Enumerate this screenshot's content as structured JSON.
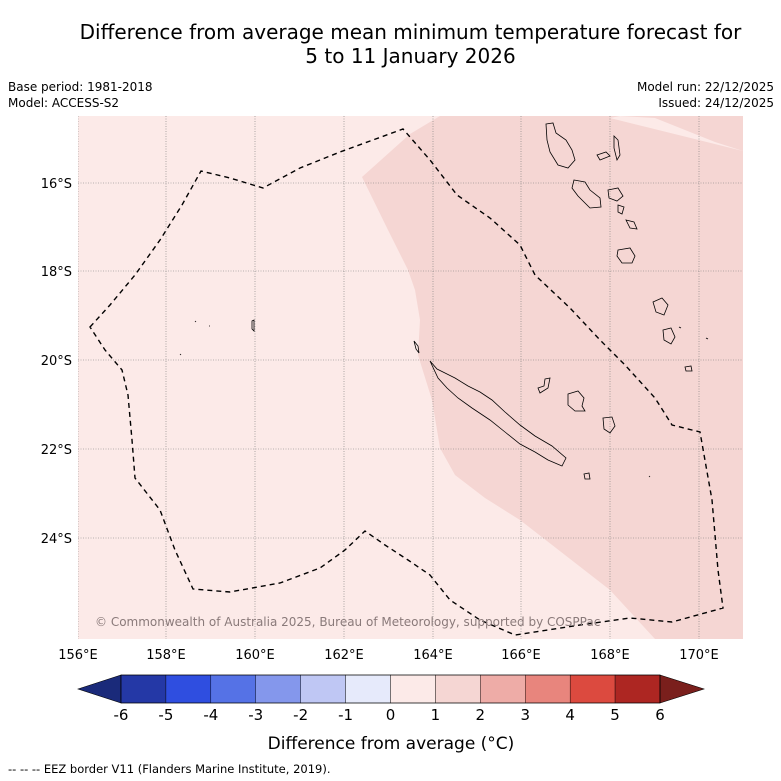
{
  "title_line1": "Difference from average mean minimum temperature forecast for",
  "title_line2": "5 to 11 January 2026",
  "meta_left": [
    "Base period: 1981-2018",
    "Model: ACCESS-S2"
  ],
  "meta_right": [
    "Model run: 22/12/2025",
    "Issued: 24/12/2025"
  ],
  "map": {
    "lon_range": [
      156.0,
      171.0
    ],
    "lat_range": [
      -14.5,
      -26.3
    ],
    "lon_ticks": [
      "156°E",
      "158°E",
      "160°E",
      "162°E",
      "164°E",
      "166°E",
      "168°E",
      "170°E"
    ],
    "lat_ticks": [
      "16°S",
      "18°S",
      "20°S",
      "22°S",
      "24°S"
    ],
    "copyright": "© Commonwealth of Australia 2025, Bureau of Meteorology, supported by COSPPac",
    "background_color": "#fceae8",
    "warm_region_color": "#f5d6d3"
  },
  "colorbar": {
    "label": "Difference from average (°C)",
    "ticks": [
      "-6",
      "-5",
      "-4",
      "-3",
      "-2",
      "-1",
      "0",
      "1",
      "2",
      "3",
      "4",
      "5",
      "6"
    ],
    "colors": [
      "#2438a6",
      "#2f4ee0",
      "#5572e6",
      "#8497ec",
      "#bfc7f4",
      "#e6eafb",
      "#fceae8",
      "#f5d6d3",
      "#eeaca7",
      "#e8857d",
      "#dc4a3f",
      "#ad2622"
    ],
    "low_extend_color": "#1a2a7a",
    "high_extend_color": "#7a1f1c"
  },
  "footnote": "--  --  -- EEZ border V11 (Flanders Marine Institute, 2019)."
}
